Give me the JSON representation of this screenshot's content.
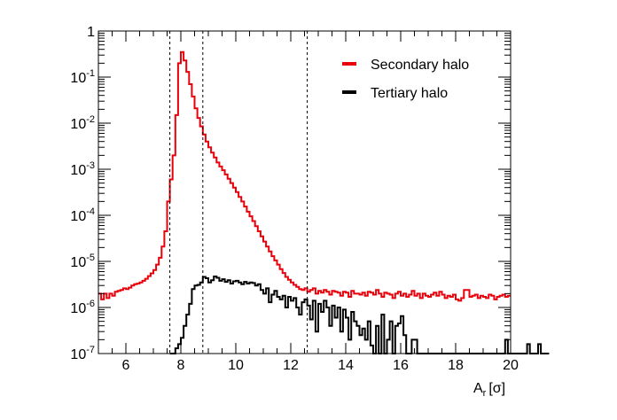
{
  "chart_data": {
    "type": "line",
    "style": "step-histogram",
    "xlabel": "A_r [σ]",
    "xlabel_main": "A",
    "xlabel_sub": "r",
    "xlabel_unit": "[σ]",
    "xlim": [
      5,
      20
    ],
    "ylim": [
      1e-07,
      1
    ],
    "yscale": "log",
    "x_ticks": [
      6,
      8,
      10,
      12,
      14,
      16,
      18,
      20
    ],
    "x_tick_labels": [
      "6",
      "8",
      "10",
      "12",
      "14",
      "16",
      "18",
      "20"
    ],
    "y_ticks": [
      {
        "value": 1e-07,
        "base": "10",
        "exp": "-7"
      },
      {
        "value": 1e-06,
        "base": "10",
        "exp": "-6"
      },
      {
        "value": 1e-05,
        "base": "10",
        "exp": "-5"
      },
      {
        "value": 0.0001,
        "base": "10",
        "exp": "-4"
      },
      {
        "value": 0.001,
        "base": "10",
        "exp": "-3"
      },
      {
        "value": 0.01,
        "base": "10",
        "exp": "-2"
      },
      {
        "value": 0.1,
        "base": "10",
        "exp": "-1"
      },
      {
        "value": 1,
        "base": "1",
        "exp": ""
      }
    ],
    "vlines": [
      7.6,
      8.8,
      12.6
    ],
    "grid": false,
    "legend_position": "top-right",
    "series": [
      {
        "name": "Secondary halo",
        "color": "#e8000b",
        "bin_width": 0.1,
        "x_start": 5.0,
        "values": [
          2e-06,
          1.5e-06,
          2e-06,
          1.6e-06,
          2e-06,
          1.8e-06,
          2.2e-06,
          2.3e-06,
          2.4e-06,
          2.6e-06,
          2.5e-06,
          2.7e-06,
          3e-06,
          3.2e-06,
          3.3e-06,
          3.5e-06,
          3.8e-06,
          4.2e-06,
          4.8e-06,
          5.5e-06,
          6.5e-06,
          8.5e-06,
          1.2e-05,
          2.1e-05,
          4.5e-05,
          0.0002,
          0.0006,
          0.002,
          0.015,
          0.2,
          0.35,
          0.23,
          0.13,
          0.07,
          0.038,
          0.021,
          0.013,
          0.0085,
          0.0057,
          0.004,
          0.003,
          0.0023,
          0.0018,
          0.0014,
          0.00115,
          0.00095,
          0.00077,
          0.00062,
          0.0005,
          0.0004,
          0.00032,
          0.00025,
          0.0002,
          0.000155,
          0.00012,
          9.5e-05,
          7.5e-05,
          5.8e-05,
          4.5e-05,
          3.5e-05,
          2.7e-05,
          2.1e-05,
          1.65e-05,
          1.3e-05,
          1.05e-05,
          8.5e-06,
          6.8e-06,
          5.6e-06,
          4.6e-06,
          4e-06,
          3.5e-06,
          3.1e-06,
          2.8e-06,
          2.5e-06,
          2.4e-06,
          2.6e-06,
          2.2e-06,
          2.4e-06,
          2.6e-06,
          2e-06,
          2.3e-06,
          2.1e-06,
          2.4e-06,
          2.2e-06,
          1.9e-06,
          2.3e-06,
          2.2e-06,
          2.1e-06,
          1.8e-06,
          2.2e-06,
          2.1e-06,
          1.7e-06,
          2.3e-06,
          2e-06,
          2e-06,
          1.9e-06,
          2.1e-06,
          1.8e-06,
          2.2e-06,
          2.1e-06,
          1.9e-06,
          2.4e-06,
          2e-06,
          1.7e-06,
          2.1e-06,
          2e-06,
          1.9e-06,
          1.6e-06,
          2e-06,
          2.2e-06,
          1.8e-06,
          2e-06,
          1.7e-06,
          1.9e-06,
          2.3e-06,
          1.8e-06,
          2e-06,
          1.6e-06,
          2e-06,
          1.8e-06,
          1.7e-06,
          1.9e-06,
          2.1e-06,
          1.8e-06,
          2.2e-06,
          1.9e-06,
          1.6e-06,
          1.8e-06,
          1.7e-06,
          1.9e-06,
          1.5e-06,
          1.4e-06,
          1.6e-06,
          2.4e-06,
          2.4e-06,
          1.7e-06,
          1.8e-06,
          1.9e-06,
          1.6e-06,
          1.8e-06,
          1.7e-06,
          1.6e-06,
          1.9e-06,
          1.8e-06,
          1.5e-06,
          1.7e-06,
          1.8e-06,
          1.9e-06,
          1.7e-06,
          1.8e-06
        ]
      },
      {
        "name": "Tertiary halo",
        "color": "#000000",
        "bin_width": 0.1,
        "x_start": 7.6,
        "values": [
          1e-07,
          1e-07,
          1.3e-07,
          1.6e-07,
          2.2e-07,
          4e-07,
          7e-07,
          1.2e-06,
          2.5e-06,
          3e-06,
          3.1e-06,
          3.5e-06,
          4.6e-06,
          4.3e-06,
          3.5e-06,
          3.9e-06,
          4.7e-06,
          4.4e-06,
          3.8e-06,
          4.1e-06,
          3.6e-06,
          3.9e-06,
          3.3e-06,
          3.7e-06,
          3.8e-06,
          3.5e-06,
          3.2e-06,
          3.6e-06,
          3.3e-06,
          3.5e-06,
          3.4e-06,
          3e-06,
          3.2e-06,
          2.4e-06,
          2e-06,
          2.6e-06,
          1.3e-06,
          1.9e-06,
          2.3e-06,
          1.7e-06,
          1.5e-06,
          1.8e-06,
          1e-06,
          1.7e-06,
          1.4e-06,
          1.6e-06,
          1e-06,
          7e-07,
          1.3e-06,
          1.5e-06,
          1.1e-06,
          5.5e-07,
          1.4e-06,
          3e-07,
          1.2e-06,
          8e-07,
          1.4e-06,
          1e-06,
          4e-07,
          1.1e-06,
          6e-07,
          1e-06,
          3e-07,
          9e-07,
          6e-07,
          2e-07,
          8e-07,
          5e-07,
          4e-07,
          2.5e-07,
          3.5e-07,
          2e-07,
          5e-07,
          1.5e-07,
          1e-07,
          4e-07,
          1e-07,
          7e-07,
          1e-07,
          2e-07,
          5e-07,
          1e-07,
          4e-07,
          4.5e-07,
          6.5e-07,
          2.5e-07,
          1e-07,
          1e-07,
          2e-07,
          2e-07,
          1e-07,
          1e-07,
          1e-07,
          1e-07,
          1e-07,
          1e-07,
          1e-07,
          1e-07,
          1e-07,
          1e-07,
          1e-07,
          1e-07,
          1e-07,
          1e-07,
          1e-07,
          1e-07,
          1e-07,
          1e-07,
          1e-07,
          1e-07,
          1e-07,
          1e-07,
          1e-07,
          1e-07,
          1e-07,
          1e-07,
          1e-07,
          1e-07,
          1e-07,
          1e-07,
          1e-07,
          1e-07,
          2e-07,
          1e-07,
          1e-07,
          1e-07,
          1e-07,
          1e-07,
          1e-07,
          1e-07,
          1.6e-07,
          1e-07,
          1e-07,
          1e-07,
          1.6e-07,
          1e-07,
          1e-07,
          1e-07
        ]
      }
    ]
  }
}
